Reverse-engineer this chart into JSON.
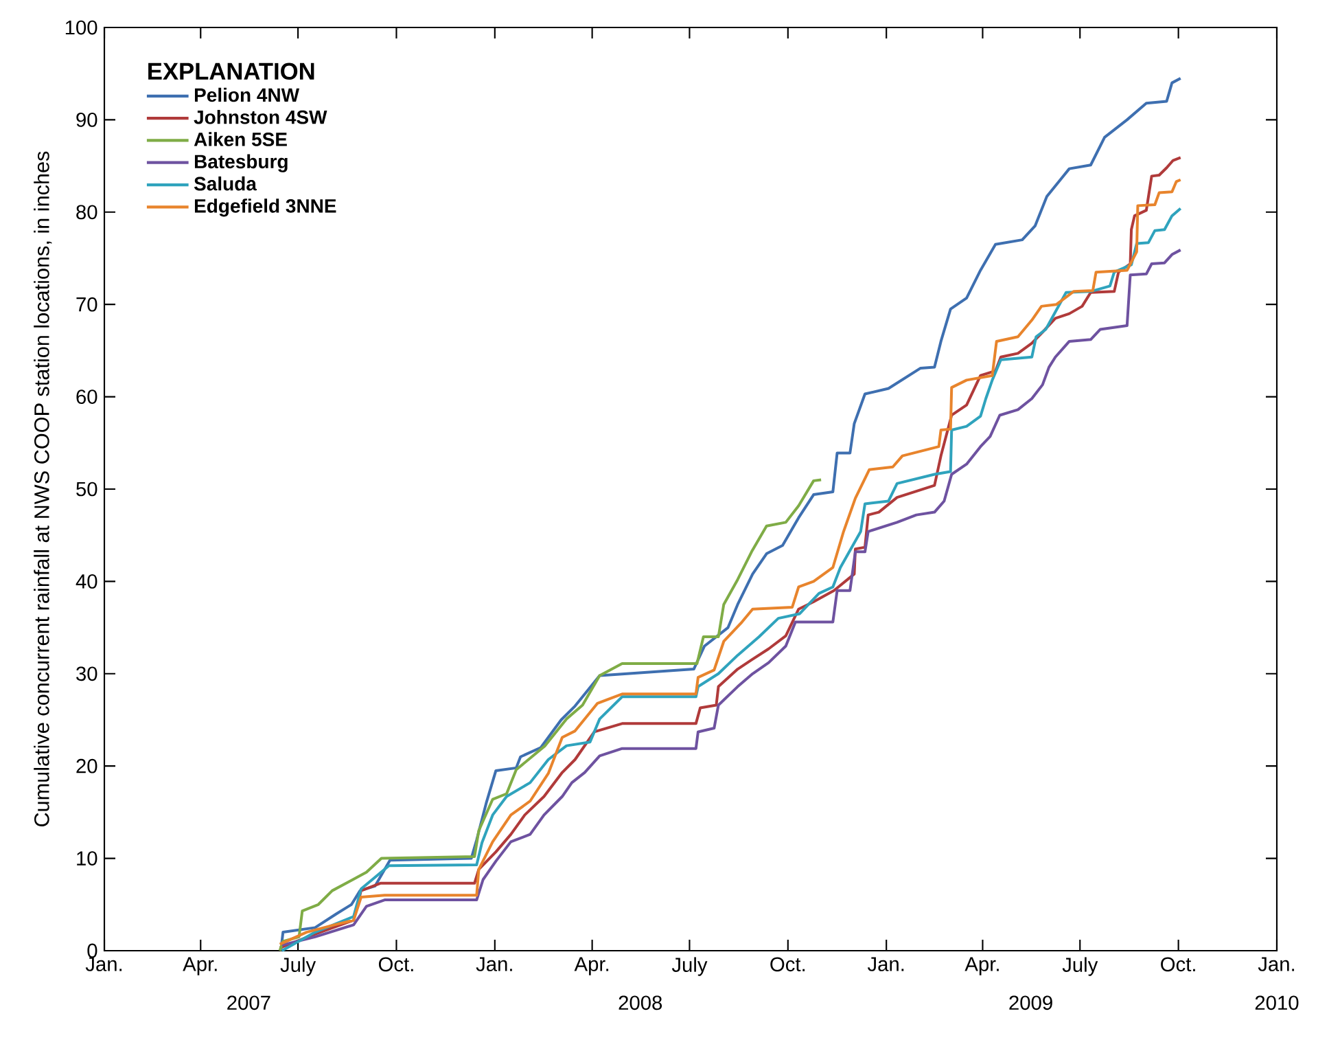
{
  "chart_data": {
    "type": "line",
    "ylabel": "Cumulative concurrent rainfall at NWS COOP station locations, in inches",
    "legend_title": "EXPLANATION",
    "legend": "top left",
    "xlim": [
      "2007-01-01",
      "2010-01-01"
    ],
    "xticks": [
      {
        "value": "2007-01-01",
        "label": "Jan."
      },
      {
        "value": "2007-04-01",
        "label": "Apr."
      },
      {
        "value": "2007-07-01",
        "label": "July"
      },
      {
        "value": "2007-10-01",
        "label": "Oct."
      },
      {
        "value": "2008-01-01",
        "label": "Jan."
      },
      {
        "value": "2008-04-01",
        "label": "Apr."
      },
      {
        "value": "2008-07-01",
        "label": "July"
      },
      {
        "value": "2008-10-01",
        "label": "Oct."
      },
      {
        "value": "2009-01-01",
        "label": "Jan."
      },
      {
        "value": "2009-04-01",
        "label": "Apr."
      },
      {
        "value": "2009-07-01",
        "label": "July"
      },
      {
        "value": "2009-10-01",
        "label": "Oct."
      },
      {
        "value": "2010-01-01",
        "label": "Jan."
      }
    ],
    "annotations": [
      "2007",
      "2008",
      "2009",
      "2010"
    ],
    "ylim": [
      0,
      100
    ],
    "yticks": [
      0,
      10,
      20,
      30,
      40,
      50,
      60,
      70,
      80,
      90,
      100
    ],
    "series": [
      {
        "name": "Pelion 4NW",
        "color": "#3e6fb0",
        "x": [
          "2007-06-15",
          "2007-06-17",
          "2007-07-17",
          "2007-08-06",
          "2007-08-20",
          "2007-08-28",
          "2007-09-11",
          "2007-09-25",
          "2007-12-10",
          "2007-12-15",
          "2007-12-24",
          "2008-01-02",
          "2008-01-21",
          "2008-01-25",
          "2008-02-13",
          "2008-03-03",
          "2008-03-16",
          "2008-04-08",
          "2008-07-05",
          "2008-07-15",
          "2008-08-06",
          "2008-08-15",
          "2008-08-29",
          "2008-09-11",
          "2008-09-26",
          "2008-10-11",
          "2008-10-25",
          "2008-11-12",
          "2008-11-16",
          "2008-11-28",
          "2008-12-02",
          "2008-12-12",
          "2009-01-03",
          "2009-02-02",
          "2009-02-15",
          "2009-02-21",
          "2009-03-02",
          "2009-03-17",
          "2009-03-30",
          "2009-04-13",
          "2009-05-08",
          "2009-05-20",
          "2009-05-31",
          "2009-06-21",
          "2009-07-11",
          "2009-07-24",
          "2009-08-14",
          "2009-09-01",
          "2009-09-20",
          "2009-09-25",
          "2009-10-03"
        ],
        "values": [
          0,
          2,
          2.5,
          4,
          5,
          6.5,
          7,
          9.8,
          10,
          12,
          16,
          19.5,
          19.8,
          21,
          22,
          25,
          26.5,
          29.8,
          30.5,
          33,
          35,
          37.5,
          40.8,
          43,
          43.9,
          46.9,
          49.4,
          49.7,
          53.9,
          53.9,
          57.1,
          60.3,
          60.9,
          63.1,
          63.2,
          66,
          69.5,
          70.7,
          73.7,
          76.5,
          77,
          78.5,
          81.7,
          84.7,
          85.1,
          88.1,
          90,
          91.8,
          92,
          94,
          94.5
        ]
      },
      {
        "name": "Johnston 4SW",
        "color": "#b03a3a",
        "x": [
          "2007-06-14",
          "2007-07-17",
          "2007-08-22",
          "2007-08-29",
          "2007-09-16",
          "2007-12-13",
          "2007-12-17",
          "2008-01-02",
          "2008-01-16",
          "2008-01-29",
          "2008-02-16",
          "2008-03-04",
          "2008-03-16",
          "2008-04-03",
          "2008-04-29",
          "2008-07-07",
          "2008-07-11",
          "2008-07-26",
          "2008-07-28",
          "2008-08-15",
          "2008-08-28",
          "2008-09-13",
          "2008-09-29",
          "2008-10-11",
          "2008-10-25",
          "2008-11-13",
          "2008-12-02",
          "2008-12-03",
          "2008-12-12",
          "2008-12-15",
          "2008-12-25",
          "2009-01-11",
          "2009-02-15",
          "2009-02-21",
          "2009-03-03",
          "2009-03-17",
          "2009-03-30",
          "2009-04-13",
          "2009-04-18",
          "2009-05-04",
          "2009-05-17",
          "2009-05-27",
          "2009-06-08",
          "2009-06-21",
          "2009-07-03",
          "2009-07-11",
          "2009-08-02",
          "2009-08-06",
          "2009-08-17",
          "2009-08-18",
          "2009-08-21",
          "2009-09-01",
          "2009-09-06",
          "2009-09-13",
          "2009-09-20",
          "2009-09-26",
          "2009-10-03"
        ],
        "values": [
          0.3,
          1.8,
          3.3,
          6.5,
          7.3,
          7.3,
          8.8,
          10.7,
          12.6,
          14.7,
          16.7,
          19.3,
          20.7,
          23.7,
          24.6,
          24.6,
          26.3,
          26.6,
          28.6,
          30.5,
          31.5,
          32.7,
          34.1,
          37,
          37.8,
          39,
          40.8,
          43.5,
          43.7,
          47.2,
          47.5,
          49.1,
          50.4,
          53.6,
          58,
          59.1,
          62.3,
          62.8,
          64.3,
          64.7,
          65.8,
          67,
          68.5,
          69,
          69.8,
          71.3,
          71.4,
          73.5,
          74.4,
          78.1,
          79.6,
          80.2,
          83.9,
          84,
          84.8,
          85.6,
          85.9
        ]
      },
      {
        "name": "Aiken 5SE",
        "color": "#7fac46",
        "x": [
          "2007-06-14",
          "2007-06-17",
          "2007-07-02",
          "2007-07-05",
          "2007-07-20",
          "2007-08-02",
          "2007-08-18",
          "2007-09-03",
          "2007-09-17",
          "2007-12-13",
          "2007-12-17",
          "2007-12-30",
          "2008-01-12",
          "2008-01-21",
          "2008-02-17",
          "2008-03-08",
          "2008-03-23",
          "2008-04-08",
          "2008-04-29",
          "2008-07-08",
          "2008-07-14",
          "2008-07-28",
          "2008-08-02",
          "2008-08-15",
          "2008-08-28",
          "2008-09-11",
          "2008-09-29",
          "2008-10-11",
          "2008-10-25",
          "2008-11-01"
        ],
        "values": [
          0,
          1,
          1.5,
          4.3,
          5,
          6.5,
          7.5,
          8.5,
          10,
          10.2,
          13,
          16.4,
          17,
          19.6,
          22.2,
          25.1,
          26.6,
          29.8,
          31.1,
          31.1,
          34,
          34,
          37.5,
          40.2,
          43.2,
          46,
          46.4,
          48.2,
          50.9,
          51
        ]
      },
      {
        "name": "Batesburg",
        "color": "#6e52a0",
        "x": [
          "2007-06-16",
          "2007-07-17",
          "2007-08-22",
          "2007-09-03",
          "2007-09-20",
          "2007-12-15",
          "2007-12-21",
          "2008-01-02",
          "2008-01-16",
          "2008-02-03",
          "2008-02-16",
          "2008-03-04",
          "2008-03-13",
          "2008-03-25",
          "2008-04-08",
          "2008-04-29",
          "2008-07-07",
          "2008-07-09",
          "2008-07-24",
          "2008-07-28",
          "2008-08-15",
          "2008-08-29",
          "2008-09-13",
          "2008-09-29",
          "2008-10-08",
          "2008-11-12",
          "2008-11-16",
          "2008-11-28",
          "2008-12-03",
          "2008-12-12",
          "2008-12-15",
          "2009-01-11",
          "2009-01-29",
          "2009-02-15",
          "2009-02-24",
          "2009-03-03",
          "2009-03-17",
          "2009-03-30",
          "2009-04-08",
          "2009-04-17",
          "2009-05-04",
          "2009-05-17",
          "2009-05-27",
          "2009-06-02",
          "2009-06-08",
          "2009-06-21",
          "2009-07-11",
          "2009-07-20",
          "2009-08-14",
          "2009-08-17",
          "2009-09-01",
          "2009-09-06",
          "2009-09-18",
          "2009-09-25",
          "2009-10-03"
        ],
        "values": [
          0.6,
          1.5,
          2.8,
          4.8,
          5.5,
          5.5,
          7.7,
          9.7,
          11.8,
          12.6,
          14.7,
          16.7,
          18.2,
          19.3,
          21.1,
          21.9,
          21.9,
          23.7,
          24.1,
          26.6,
          28.6,
          30,
          31.2,
          33,
          35.6,
          35.6,
          39,
          39,
          43.2,
          43.2,
          45.4,
          46.4,
          47.2,
          47.5,
          48.7,
          51.6,
          52.7,
          54.6,
          55.7,
          58,
          58.6,
          59.8,
          61.3,
          63.2,
          64.3,
          66,
          66.2,
          67.3,
          67.7,
          73.2,
          73.3,
          74.4,
          74.5,
          75.4,
          75.9
        ]
      },
      {
        "name": "Saluda",
        "color": "#2fa3bd",
        "x": [
          "2007-06-16",
          "2007-07-17",
          "2007-08-22",
          "2007-08-29",
          "2007-09-24",
          "2007-12-15",
          "2007-12-20",
          "2007-12-30",
          "2008-01-12",
          "2008-02-03",
          "2008-02-20",
          "2008-03-08",
          "2008-03-30",
          "2008-04-08",
          "2008-04-29",
          "2008-07-07",
          "2008-07-09",
          "2008-07-28",
          "2008-08-15",
          "2008-09-04",
          "2008-09-22",
          "2008-10-12",
          "2008-10-30",
          "2008-11-12",
          "2008-11-19",
          "2008-12-08",
          "2008-12-12",
          "2009-01-03",
          "2009-01-11",
          "2009-02-15",
          "2009-03-02",
          "2009-03-03",
          "2009-03-17",
          "2009-03-30",
          "2009-04-04",
          "2009-04-10",
          "2009-04-18",
          "2009-05-17",
          "2009-05-21",
          "2009-05-30",
          "2009-06-08",
          "2009-06-18",
          "2009-07-11",
          "2009-07-29",
          "2009-08-02",
          "2009-08-18",
          "2009-08-23",
          "2009-09-03",
          "2009-09-09",
          "2009-09-18",
          "2009-09-25",
          "2009-10-03"
        ],
        "values": [
          0,
          2,
          3.7,
          6.7,
          9.2,
          9.3,
          11.7,
          14.7,
          16.7,
          18.2,
          20.7,
          22.2,
          22.6,
          25.1,
          27.5,
          27.5,
          28.6,
          30,
          32,
          34,
          36,
          36.5,
          38.7,
          39.4,
          41.5,
          45.4,
          48.4,
          48.7,
          50.6,
          51.6,
          51.9,
          56.4,
          56.8,
          57.9,
          59.8,
          61.8,
          64,
          64.3,
          66.5,
          67.3,
          69.2,
          71.3,
          71.4,
          72,
          73.5,
          74.3,
          76.6,
          76.7,
          78,
          78.1,
          79.6,
          80.4
        ]
      },
      {
        "name": "Edgefield 3NNE",
        "color": "#e8842c",
        "x": [
          "2007-06-14",
          "2007-07-09",
          "2007-08-04",
          "2007-08-22",
          "2007-08-29",
          "2007-09-20",
          "2007-12-15",
          "2007-12-17",
          "2007-12-30",
          "2008-01-16",
          "2008-02-03",
          "2008-02-20",
          "2008-03-04",
          "2008-03-16",
          "2008-04-06",
          "2008-04-29",
          "2008-07-07",
          "2008-07-09",
          "2008-07-24",
          "2008-08-02",
          "2008-08-19",
          "2008-08-29",
          "2008-10-05",
          "2008-10-11",
          "2008-10-25",
          "2008-11-12",
          "2008-11-22",
          "2008-12-03",
          "2008-12-16",
          "2009-01-07",
          "2009-01-16",
          "2009-02-19",
          "2009-02-21",
          "2009-03-02",
          "2009-03-03",
          "2009-03-17",
          "2009-04-10",
          "2009-04-14",
          "2009-05-04",
          "2009-05-17",
          "2009-05-26",
          "2009-06-09",
          "2009-06-25",
          "2009-07-13",
          "2009-07-16",
          "2009-08-14",
          "2009-08-23",
          "2009-08-24",
          "2009-09-09",
          "2009-09-13",
          "2009-09-25",
          "2009-09-29",
          "2009-10-03"
        ],
        "values": [
          0.7,
          2,
          2.8,
          3.3,
          5.8,
          6,
          6,
          8.8,
          11.8,
          14.7,
          16.2,
          19.2,
          23.1,
          23.8,
          26.8,
          27.8,
          27.8,
          29.6,
          30.4,
          33.5,
          35.6,
          37,
          37.2,
          39.4,
          40,
          41.5,
          45.4,
          49,
          52.1,
          52.4,
          53.6,
          54.6,
          56.4,
          56.5,
          61,
          61.8,
          62.3,
          66,
          66.5,
          68.3,
          69.8,
          70,
          71.4,
          71.5,
          73.5,
          73.7,
          75.7,
          80.7,
          80.8,
          82.1,
          82.2,
          83.3,
          83.5
        ]
      }
    ]
  }
}
